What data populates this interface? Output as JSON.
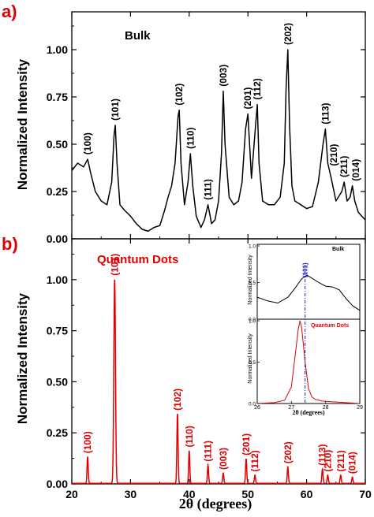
{
  "figure": {
    "xlabel": "2θ (degrees)",
    "x_ticks": [
      20,
      30,
      40,
      50,
      60,
      70
    ]
  },
  "chart_data": [
    {
      "type": "line",
      "panel_label": "a)",
      "title": "Bulk",
      "ylabel": "Normalized Intensity",
      "xlim": [
        20,
        70
      ],
      "ylim": [
        0,
        1.2
      ],
      "y_ticks": [
        "0.00",
        "0.25",
        "0.50",
        "0.75",
        "1.00"
      ],
      "color": "#000000",
      "series": [
        {
          "x": [
            20.0,
            21.0,
            22.0,
            22.7,
            23.2,
            24.0,
            25.0,
            26.0,
            26.8,
            27.2,
            27.4,
            27.7,
            28.2,
            29.0,
            30.0,
            31.0,
            32.0,
            33.0,
            34.0,
            35.0,
            35.8,
            36.4,
            37.0,
            37.6,
            38.1,
            38.3,
            38.6,
            39.2,
            39.8,
            40.2,
            40.6,
            41.2,
            42.0,
            42.6,
            43.2,
            43.8,
            44.4,
            45.0,
            45.5,
            45.8,
            46.1,
            46.8,
            47.6,
            48.4,
            49.0,
            49.6,
            50.0,
            50.6,
            51.3,
            51.6,
            51.9,
            52.5,
            53.5,
            54.5,
            55.5,
            56.2,
            56.5,
            56.8,
            57.1,
            57.5,
            58.0,
            59.0,
            60.0,
            61.0,
            62.0,
            62.8,
            63.2,
            63.6,
            64.2,
            65.0,
            66.0,
            66.4,
            66.9,
            67.4,
            67.8,
            68.2,
            68.8,
            69.4,
            70.0
          ],
          "values": [
            0.36,
            0.4,
            0.38,
            0.42,
            0.35,
            0.25,
            0.2,
            0.18,
            0.3,
            0.55,
            0.6,
            0.4,
            0.18,
            0.15,
            0.12,
            0.08,
            0.05,
            0.04,
            0.06,
            0.07,
            0.15,
            0.22,
            0.28,
            0.4,
            0.65,
            0.68,
            0.4,
            0.18,
            0.3,
            0.45,
            0.28,
            0.12,
            0.06,
            0.1,
            0.18,
            0.08,
            0.1,
            0.2,
            0.45,
            0.78,
            0.5,
            0.22,
            0.18,
            0.2,
            0.3,
            0.58,
            0.66,
            0.32,
            0.6,
            0.71,
            0.4,
            0.2,
            0.18,
            0.18,
            0.22,
            0.4,
            0.8,
            1.0,
            0.6,
            0.28,
            0.2,
            0.18,
            0.16,
            0.17,
            0.3,
            0.5,
            0.58,
            0.4,
            0.32,
            0.2,
            0.25,
            0.3,
            0.2,
            0.22,
            0.28,
            0.2,
            0.14,
            0.12,
            0.1
          ]
        }
      ],
      "annotations": [
        {
          "text": "(100)",
          "x": 22.7,
          "y": 0.42
        },
        {
          "text": "(101)",
          "x": 27.4,
          "y": 0.6
        },
        {
          "text": "(102)",
          "x": 38.3,
          "y": 0.68
        },
        {
          "text": "(110)",
          "x": 40.2,
          "y": 0.45
        },
        {
          "text": "(111)",
          "x": 43.2,
          "y": 0.18
        },
        {
          "text": "(003)",
          "x": 45.8,
          "y": 0.78
        },
        {
          "text": "(201)",
          "x": 50.0,
          "y": 0.66
        },
        {
          "text": "(112)",
          "x": 51.6,
          "y": 0.71
        },
        {
          "text": "(202)",
          "x": 56.8,
          "y": 1.0
        },
        {
          "text": "(113)",
          "x": 63.2,
          "y": 0.58
        },
        {
          "text": "(210)",
          "x": 64.6,
          "y": 0.36
        },
        {
          "text": "(211)",
          "x": 66.4,
          "y": 0.3
        },
        {
          "text": "(014)",
          "x": 68.4,
          "y": 0.28
        }
      ]
    },
    {
      "type": "line",
      "panel_label": "b)",
      "title": "Quantum Dots",
      "ylabel": "Normalized Intensity",
      "xlim": [
        20,
        70
      ],
      "ylim": [
        0,
        1.2
      ],
      "y_ticks": [
        "0.00",
        "0.25",
        "0.50",
        "0.75",
        "1.00"
      ],
      "color": "#e00000",
      "peaks": [
        {
          "x": 22.7,
          "y": 0.13,
          "label": "(100)"
        },
        {
          "x": 27.3,
          "y": 1.0,
          "label": "(101)"
        },
        {
          "x": 38.0,
          "y": 0.34,
          "label": "(102)"
        },
        {
          "x": 40.0,
          "y": 0.16,
          "label": "(110)"
        },
        {
          "x": 43.2,
          "y": 0.09,
          "label": "(111)"
        },
        {
          "x": 45.8,
          "y": 0.05,
          "label": "(003)"
        },
        {
          "x": 49.7,
          "y": 0.12,
          "label": "(201)"
        },
        {
          "x": 51.2,
          "y": 0.04,
          "label": "(112)"
        },
        {
          "x": 56.8,
          "y": 0.08,
          "label": "(202)"
        },
        {
          "x": 62.7,
          "y": 0.07,
          "label": "(113)"
        },
        {
          "x": 63.6,
          "y": 0.04,
          "label": "(210)"
        },
        {
          "x": 65.8,
          "y": 0.04,
          "label": "(211)"
        },
        {
          "x": 67.8,
          "y": 0.03,
          "label": "(014)"
        }
      ]
    },
    {
      "type": "line",
      "role": "inset",
      "title": "Bulk",
      "ylabel": "Normalized Intensity",
      "xlabel": "2θ (degrees)",
      "xlim": [
        26,
        29
      ],
      "ylim": [
        0,
        1.0
      ],
      "y_ticks": [
        "0.0",
        "0.5",
        "1.0"
      ],
      "x_ticks": [
        26,
        27,
        28,
        29
      ],
      "peak_label": "(101)",
      "peak_x": 27.4,
      "series": [
        {
          "name": "Bulk",
          "color": "#000000",
          "x": [
            26.0,
            26.3,
            26.6,
            26.9,
            27.1,
            27.3,
            27.45,
            27.6,
            27.8,
            28.0,
            28.2,
            28.4,
            28.6,
            28.8,
            29.0
          ],
          "values": [
            0.3,
            0.25,
            0.22,
            0.3,
            0.42,
            0.55,
            0.6,
            0.56,
            0.5,
            0.45,
            0.44,
            0.4,
            0.28,
            0.18,
            0.12
          ]
        },
        {
          "name": "Quantum Dots",
          "color": "#e00000",
          "x": [
            26.0,
            26.5,
            26.8,
            27.0,
            27.1,
            27.2,
            27.25,
            27.3,
            27.4,
            27.5,
            27.6,
            27.7,
            27.9,
            28.2,
            28.6,
            29.0
          ],
          "values": [
            0.0,
            0.01,
            0.04,
            0.2,
            0.55,
            0.9,
            1.0,
            0.92,
            0.5,
            0.18,
            0.08,
            0.05,
            0.03,
            0.02,
            0.01,
            0.0
          ]
        }
      ]
    }
  ]
}
